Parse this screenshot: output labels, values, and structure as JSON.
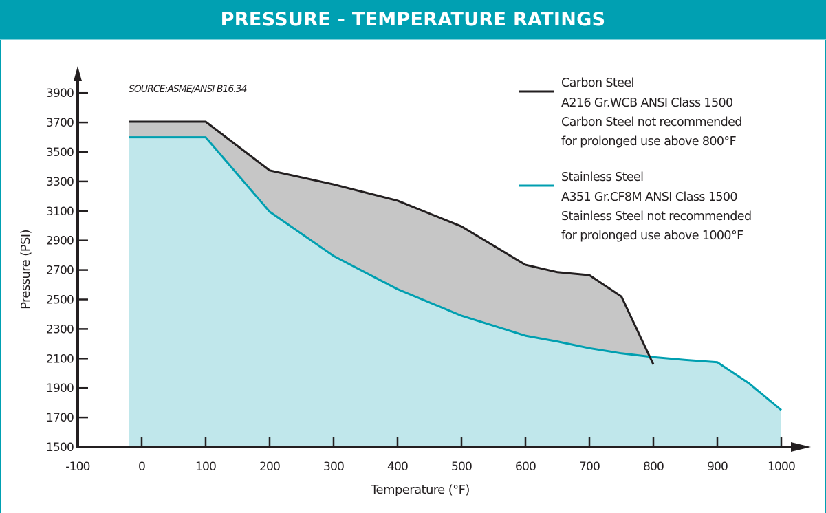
{
  "header": {
    "title": "PRESSURE - TEMPERATURE RATINGS"
  },
  "colors": {
    "brand": "#00a0b2",
    "carbon_line": "#231f20",
    "carbon_fill": "#c6c6c6",
    "stainless_line": "#009fb0",
    "stainless_fill": "#c0e7eb",
    "axis": "#231f20"
  },
  "chart_data": {
    "type": "area",
    "title": "PRESSURE - TEMPERATURE RATINGS",
    "source": "SOURCE:ASME/ANSI B16.34",
    "xlabel": "Temperature (°F)",
    "ylabel": "Pressure (PSI)",
    "xlim": [
      -100,
      1000
    ],
    "ylim": [
      1500,
      3900
    ],
    "xticks": [
      -100,
      0,
      100,
      200,
      300,
      400,
      500,
      600,
      700,
      800,
      900,
      1000
    ],
    "yticks": [
      1500,
      1700,
      1900,
      2100,
      2300,
      2500,
      2700,
      2900,
      3100,
      3300,
      3500,
      3700,
      3900
    ],
    "grid": false,
    "legend_position": "top-right",
    "series": [
      {
        "name": "Carbon Steel",
        "legend_lines": [
          "Carbon Steel",
          "A216 Gr.WCB ANSI Class 1500",
          "Carbon Steel not recommended",
          "for prolonged use above 800°F"
        ],
        "x": [
          -20,
          100,
          200,
          300,
          400,
          500,
          600,
          650,
          700,
          750,
          800
        ],
        "y": [
          3705,
          3705,
          3375,
          3280,
          3170,
          2995,
          2735,
          2685,
          2665,
          2520,
          2060
        ]
      },
      {
        "name": "Stainless Steel",
        "legend_lines": [
          "Stainless Steel",
          "A351 Gr.CF8M ANSI Class 1500",
          "Stainless Steel not recommended",
          "for prolonged use above 1000°F"
        ],
        "x": [
          -20,
          100,
          200,
          300,
          400,
          500,
          600,
          650,
          700,
          750,
          800,
          850,
          900,
          950,
          1000
        ],
        "y": [
          3600,
          3600,
          3095,
          2795,
          2570,
          2390,
          2255,
          2215,
          2170,
          2135,
          2110,
          2090,
          2075,
          1930,
          1750
        ]
      }
    ]
  }
}
